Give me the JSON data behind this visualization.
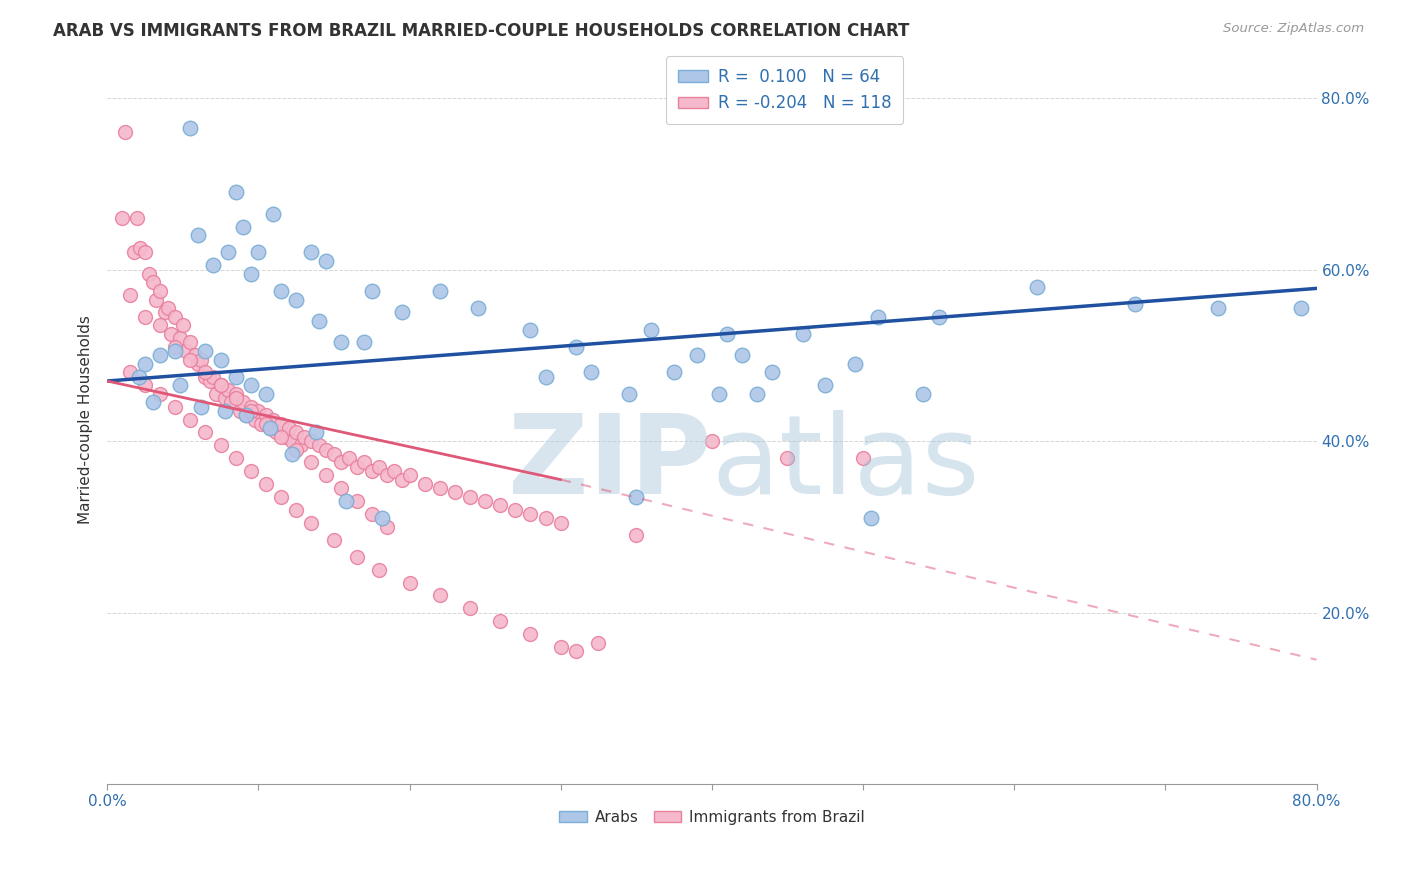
{
  "title": "ARAB VS IMMIGRANTS FROM BRAZIL MARRIED-COUPLE HOUSEHOLDS CORRELATION CHART",
  "source": "Source: ZipAtlas.com",
  "ylabel": "Married-couple Households",
  "xlim": [
    0,
    0.8
  ],
  "ylim": [
    0,
    0.85
  ],
  "xtick_positions": [
    0.0,
    0.1,
    0.2,
    0.3,
    0.4,
    0.5,
    0.6,
    0.7,
    0.8
  ],
  "xticklabels": [
    "0.0%",
    "",
    "",
    "",
    "",
    "",
    "",
    "",
    "80.0%"
  ],
  "ytick_positions": [
    0.2,
    0.4,
    0.6,
    0.8
  ],
  "ytick_labels": [
    "20.0%",
    "40.0%",
    "60.0%",
    "80.0%"
  ],
  "legend_r_arab": " 0.100",
  "legend_n_arab": "64",
  "legend_r_brazil": "-0.204",
  "legend_n_brazil": "118",
  "arab_color": "#aec6e8",
  "arab_edge_color": "#7aaed6",
  "brazil_color": "#f5b8cc",
  "brazil_edge_color": "#e8809c",
  "arab_trend_color": "#2050a0",
  "brazil_trend_color": "#e05878",
  "background_color": "#ffffff",
  "grid_color": "#cccccc",
  "arab_trend_x0": 0.0,
  "arab_trend_y0": 0.47,
  "arab_trend_x1": 0.8,
  "arab_trend_y1": 0.578,
  "brazil_trend_solid_x0": 0.0,
  "brazil_trend_solid_y0": 0.47,
  "brazil_trend_solid_x1": 0.3,
  "brazil_trend_solid_y1": 0.355,
  "brazil_trend_dash_x0": 0.3,
  "brazil_trend_dash_y0": 0.355,
  "brazil_trend_dash_x1": 0.8,
  "brazil_trend_dash_y1": 0.145,
  "arab_x": [
    0.021,
    0.055,
    0.085,
    0.11,
    0.135,
    0.08,
    0.095,
    0.145,
    0.175,
    0.195,
    0.22,
    0.245,
    0.17,
    0.28,
    0.31,
    0.36,
    0.41,
    0.46,
    0.51,
    0.55,
    0.42,
    0.475,
    0.54,
    0.39,
    0.44,
    0.495,
    0.06,
    0.07,
    0.09,
    0.1,
    0.115,
    0.125,
    0.14,
    0.155,
    0.025,
    0.035,
    0.045,
    0.065,
    0.075,
    0.085,
    0.095,
    0.105,
    0.29,
    0.32,
    0.345,
    0.375,
    0.405,
    0.43,
    0.615,
    0.68,
    0.735,
    0.79,
    0.03,
    0.048,
    0.062,
    0.078,
    0.092,
    0.108,
    0.122,
    0.138,
    0.158,
    0.182,
    0.35,
    0.505
  ],
  "arab_y": [
    0.475,
    0.765,
    0.69,
    0.665,
    0.62,
    0.62,
    0.595,
    0.61,
    0.575,
    0.55,
    0.575,
    0.555,
    0.515,
    0.53,
    0.51,
    0.53,
    0.525,
    0.525,
    0.545,
    0.545,
    0.5,
    0.465,
    0.455,
    0.5,
    0.48,
    0.49,
    0.64,
    0.605,
    0.65,
    0.62,
    0.575,
    0.565,
    0.54,
    0.515,
    0.49,
    0.5,
    0.505,
    0.505,
    0.495,
    0.475,
    0.465,
    0.455,
    0.475,
    0.48,
    0.455,
    0.48,
    0.455,
    0.455,
    0.58,
    0.56,
    0.555,
    0.555,
    0.445,
    0.465,
    0.44,
    0.435,
    0.43,
    0.415,
    0.385,
    0.41,
    0.33,
    0.31,
    0.335,
    0.31
  ],
  "brazil_x": [
    0.01,
    0.012,
    0.018,
    0.02,
    0.022,
    0.025,
    0.028,
    0.03,
    0.032,
    0.035,
    0.038,
    0.04,
    0.042,
    0.045,
    0.048,
    0.05,
    0.052,
    0.055,
    0.058,
    0.06,
    0.062,
    0.065,
    0.068,
    0.07,
    0.072,
    0.075,
    0.078,
    0.08,
    0.082,
    0.085,
    0.088,
    0.09,
    0.092,
    0.095,
    0.098,
    0.1,
    0.102,
    0.105,
    0.108,
    0.11,
    0.112,
    0.115,
    0.118,
    0.12,
    0.122,
    0.125,
    0.128,
    0.13,
    0.135,
    0.14,
    0.145,
    0.15,
    0.155,
    0.16,
    0.165,
    0.17,
    0.175,
    0.18,
    0.185,
    0.19,
    0.195,
    0.2,
    0.21,
    0.22,
    0.23,
    0.24,
    0.25,
    0.26,
    0.27,
    0.28,
    0.29,
    0.3,
    0.015,
    0.025,
    0.035,
    0.045,
    0.055,
    0.065,
    0.075,
    0.085,
    0.095,
    0.105,
    0.115,
    0.125,
    0.135,
    0.145,
    0.155,
    0.165,
    0.175,
    0.185,
    0.015,
    0.025,
    0.035,
    0.045,
    0.055,
    0.065,
    0.075,
    0.085,
    0.095,
    0.105,
    0.115,
    0.125,
    0.135,
    0.15,
    0.165,
    0.18,
    0.2,
    0.22,
    0.24,
    0.26,
    0.28,
    0.3,
    0.35,
    0.4,
    0.45,
    0.5,
    0.31,
    0.325
  ],
  "brazil_y": [
    0.66,
    0.76,
    0.62,
    0.66,
    0.625,
    0.62,
    0.595,
    0.585,
    0.565,
    0.575,
    0.55,
    0.555,
    0.525,
    0.545,
    0.52,
    0.535,
    0.505,
    0.515,
    0.5,
    0.49,
    0.495,
    0.475,
    0.47,
    0.475,
    0.455,
    0.465,
    0.45,
    0.46,
    0.445,
    0.455,
    0.435,
    0.445,
    0.43,
    0.44,
    0.425,
    0.435,
    0.42,
    0.43,
    0.415,
    0.425,
    0.41,
    0.42,
    0.405,
    0.415,
    0.4,
    0.41,
    0.395,
    0.405,
    0.4,
    0.395,
    0.39,
    0.385,
    0.375,
    0.38,
    0.37,
    0.375,
    0.365,
    0.37,
    0.36,
    0.365,
    0.355,
    0.36,
    0.35,
    0.345,
    0.34,
    0.335,
    0.33,
    0.325,
    0.32,
    0.315,
    0.31,
    0.305,
    0.57,
    0.545,
    0.535,
    0.51,
    0.495,
    0.48,
    0.465,
    0.45,
    0.435,
    0.42,
    0.405,
    0.39,
    0.375,
    0.36,
    0.345,
    0.33,
    0.315,
    0.3,
    0.48,
    0.465,
    0.455,
    0.44,
    0.425,
    0.41,
    0.395,
    0.38,
    0.365,
    0.35,
    0.335,
    0.32,
    0.305,
    0.285,
    0.265,
    0.25,
    0.235,
    0.22,
    0.205,
    0.19,
    0.175,
    0.16,
    0.29,
    0.4,
    0.38,
    0.38,
    0.155,
    0.165
  ]
}
